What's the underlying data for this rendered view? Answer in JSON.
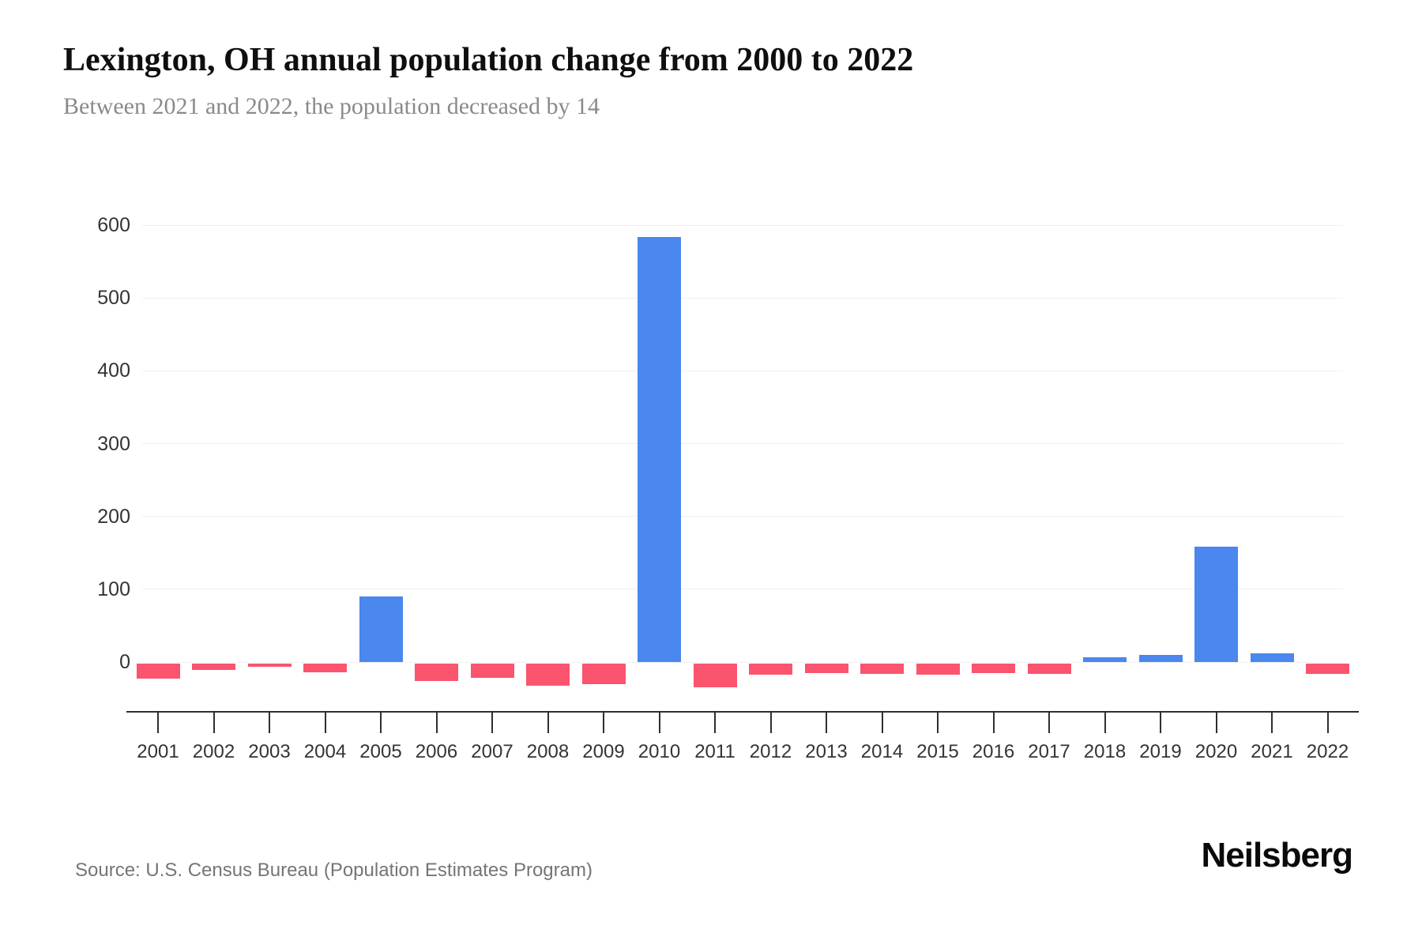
{
  "header": {
    "title": "Lexington, OH annual population change from 2000 to 2022",
    "subtitle": "Between 2021 and 2022, the population decreased by 14"
  },
  "footer": {
    "source": "Source: U.S. Census Bureau (Population Estimates Program)",
    "brand": "Neilsberg"
  },
  "colors": {
    "positive_bar": "#4a87ee",
    "negative_bar": "#fa546e",
    "gridline": "#f0f0f0",
    "axis_line": "#2f2f2f",
    "tick_label": "#343434",
    "title_text": "#0f0f0f",
    "subtitle_text": "#8a8a8a",
    "source_text": "#757575"
  },
  "chart_data": {
    "type": "bar",
    "title": "Lexington, OH annual population change from 2000 to 2022",
    "subtitle": "Between 2021 and 2022, the population decreased by 14",
    "categories": [
      "2001",
      "2002",
      "2003",
      "2004",
      "2005",
      "2006",
      "2007",
      "2008",
      "2009",
      "2010",
      "2011",
      "2012",
      "2013",
      "2014",
      "2015",
      "2016",
      "2017",
      "2018",
      "2019",
      "2020",
      "2021",
      "2022"
    ],
    "values": [
      -21,
      -9,
      -4,
      -12,
      90,
      -24,
      -19,
      -30,
      -28,
      584,
      -33,
      -15,
      -13,
      -14,
      -15,
      -13,
      -14,
      7,
      10,
      158,
      12,
      -14
    ],
    "xlabel": "",
    "ylabel": "",
    "yticks": [
      0,
      100,
      200,
      300,
      400,
      500,
      600
    ],
    "ylim": [
      -50,
      620
    ],
    "grid": "horizontal-light",
    "legend": "none",
    "bar_color_positive": "#4a87ee",
    "bar_color_negative": "#fa546e"
  }
}
